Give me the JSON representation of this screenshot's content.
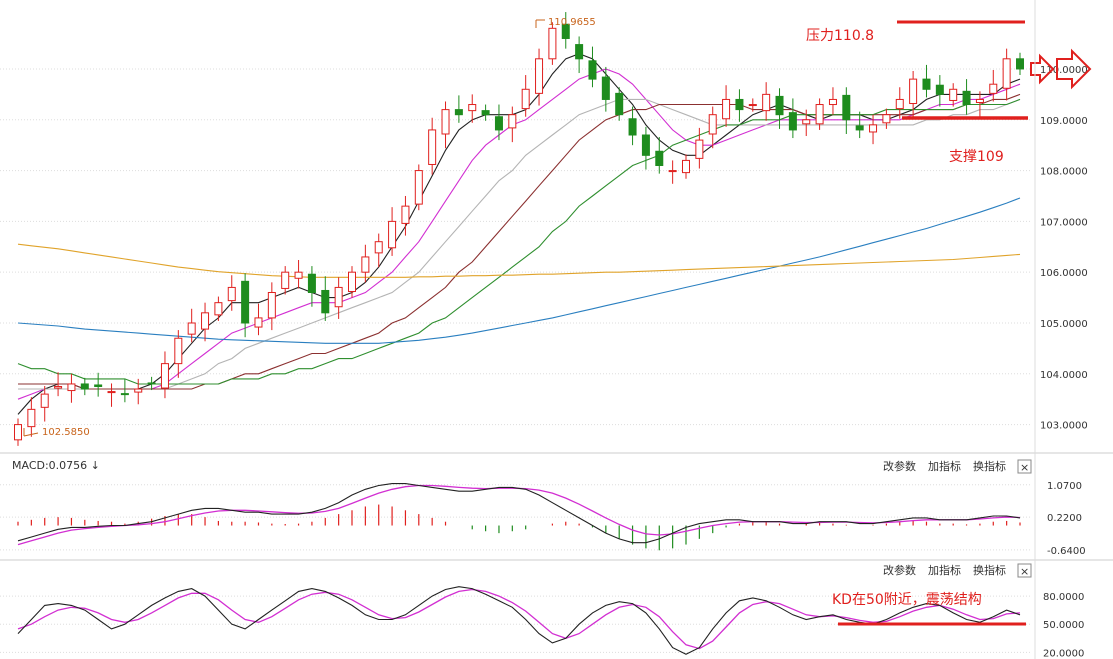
{
  "chart_data": [
    {
      "type": "candlestick",
      "panel": "price",
      "ylim": [
        102.5,
        111.2
      ],
      "y_ticks": [
        "103.0000",
        "104.0000",
        "105.0000",
        "106.0000",
        "107.0000",
        "108.0000",
        "109.0000",
        "110.0000"
      ],
      "high_marker": "110.9655",
      "low_marker": "102.5850",
      "close_path": [
        103.0,
        103.3,
        103.6,
        103.75,
        103.8,
        103.7,
        103.75,
        103.65,
        103.6,
        103.7,
        103.8,
        104.2,
        104.7,
        105.0,
        105.2,
        105.4,
        105.7,
        105.0,
        105.1,
        105.6,
        106.0,
        106.0,
        105.6,
        105.2,
        105.7,
        106.0,
        106.3,
        106.6,
        107.0,
        107.3,
        108.0,
        108.8,
        109.2,
        109.1,
        109.3,
        109.1,
        108.8,
        109.1,
        109.6,
        110.2,
        110.8,
        110.6,
        110.2,
        109.8,
        109.4,
        109.1,
        108.7,
        108.3,
        108.1,
        108.0,
        108.2,
        108.6,
        109.1,
        109.4,
        109.2,
        109.3,
        109.5,
        109.1,
        108.8,
        109.0,
        109.3,
        109.4,
        109.0,
        108.8,
        108.9,
        109.1,
        109.4,
        109.8,
        109.6,
        109.5,
        109.6,
        109.3,
        109.4,
        109.7,
        110.2,
        110.0
      ],
      "moving_averages": [
        {
          "color": "#222222",
          "values": [
            103.2,
            103.5,
            103.7,
            103.8,
            103.8,
            103.7,
            103.7,
            103.7,
            103.7,
            103.7,
            103.8,
            104.0,
            104.3,
            104.6,
            104.9,
            105.1,
            105.4,
            105.4,
            105.4,
            105.5,
            105.6,
            105.7,
            105.6,
            105.5,
            105.5,
            105.6,
            105.8,
            106.1,
            106.5,
            106.9,
            107.4,
            107.9,
            108.4,
            108.8,
            109.0,
            109.1,
            109.1,
            109.1,
            109.2,
            109.5,
            109.9,
            110.2,
            110.3,
            110.2,
            109.9,
            109.6,
            109.3,
            108.9,
            108.6,
            108.4,
            108.3,
            108.3,
            108.5,
            108.7,
            108.9,
            109.1,
            109.2,
            109.3,
            109.2,
            109.1,
            109.0,
            109.1,
            109.1,
            109.1,
            109.0,
            109.0,
            109.1,
            109.2,
            109.4,
            109.5,
            109.5,
            109.5,
            109.5,
            109.5,
            109.7,
            109.8
          ]
        },
        {
          "color": "#d22fd2",
          "values": [
            103.5,
            103.6,
            103.7,
            103.7,
            103.7,
            103.7,
            103.7,
            103.7,
            103.7,
            103.7,
            103.7,
            103.8,
            104.0,
            104.2,
            104.4,
            104.6,
            104.8,
            104.9,
            105.0,
            105.1,
            105.2,
            105.3,
            105.4,
            105.4,
            105.4,
            105.5,
            105.6,
            105.8,
            106.0,
            106.3,
            106.6,
            107.0,
            107.4,
            107.8,
            108.2,
            108.5,
            108.7,
            108.9,
            109.0,
            109.2,
            109.4,
            109.6,
            109.8,
            109.9,
            110.0,
            109.9,
            109.7,
            109.4,
            109.1,
            108.8,
            108.6,
            108.5,
            108.5,
            108.6,
            108.7,
            108.8,
            108.9,
            109.0,
            109.0,
            109.0,
            109.0,
            109.0,
            109.0,
            109.0,
            109.0,
            109.0,
            109.0,
            109.1,
            109.2,
            109.3,
            109.3,
            109.4,
            109.4,
            109.5,
            109.6,
            109.7
          ]
        },
        {
          "color": "#b4b4b4",
          "values": [
            103.7,
            103.7,
            103.7,
            103.7,
            103.7,
            103.7,
            103.7,
            103.7,
            103.7,
            103.7,
            103.7,
            103.7,
            103.8,
            103.9,
            104.0,
            104.2,
            104.3,
            104.5,
            104.6,
            104.7,
            104.8,
            104.9,
            105.0,
            105.1,
            105.2,
            105.3,
            105.4,
            105.5,
            105.6,
            105.8,
            106.0,
            106.3,
            106.6,
            106.9,
            107.2,
            107.5,
            107.8,
            108.0,
            108.3,
            108.5,
            108.7,
            108.9,
            109.1,
            109.2,
            109.3,
            109.4,
            109.4,
            109.4,
            109.3,
            109.2,
            109.1,
            109.0,
            108.9,
            108.9,
            108.9,
            108.9,
            108.9,
            108.9,
            108.9,
            108.9,
            108.9,
            108.9,
            108.9,
            108.9,
            108.9,
            108.9,
            108.9,
            108.9,
            109.0,
            109.0,
            109.1,
            109.1,
            109.2,
            109.2,
            109.3,
            109.4
          ]
        },
        {
          "color": "#8b3030",
          "values": [
            103.8,
            103.8,
            103.8,
            103.8,
            103.8,
            103.7,
            103.7,
            103.7,
            103.7,
            103.7,
            103.7,
            103.7,
            103.7,
            103.7,
            103.8,
            103.8,
            103.9,
            104.0,
            104.0,
            104.1,
            104.2,
            104.3,
            104.4,
            104.4,
            104.5,
            104.6,
            104.7,
            104.8,
            105.0,
            105.1,
            105.3,
            105.5,
            105.7,
            106.0,
            106.2,
            106.5,
            106.8,
            107.1,
            107.4,
            107.7,
            108.0,
            108.3,
            108.6,
            108.8,
            109.0,
            109.1,
            109.2,
            109.2,
            109.3,
            109.3,
            109.3,
            109.3,
            109.3,
            109.3,
            109.3,
            109.2,
            109.2,
            109.2,
            109.2,
            109.1,
            109.1,
            109.1,
            109.1,
            109.1,
            109.1,
            109.1,
            109.1,
            109.1,
            109.2,
            109.2,
            109.2,
            109.3,
            109.3,
            109.4,
            109.4,
            109.5
          ]
        },
        {
          "color": "#2f8f2f",
          "values": [
            104.2,
            104.1,
            104.1,
            104.0,
            104.0,
            103.9,
            103.9,
            103.9,
            103.9,
            103.8,
            103.8,
            103.8,
            103.8,
            103.8,
            103.8,
            103.8,
            103.9,
            103.9,
            103.9,
            104.0,
            104.0,
            104.1,
            104.1,
            104.2,
            104.3,
            104.3,
            104.4,
            104.5,
            104.6,
            104.7,
            104.8,
            105.0,
            105.1,
            105.3,
            105.5,
            105.7,
            105.9,
            106.1,
            106.3,
            106.5,
            106.8,
            107.0,
            107.3,
            107.5,
            107.7,
            107.9,
            108.1,
            108.2,
            108.3,
            108.5,
            108.6,
            108.7,
            108.8,
            108.9,
            108.9,
            109.0,
            109.0,
            109.0,
            109.1,
            109.1,
            109.1,
            109.1,
            109.1,
            109.1,
            109.1,
            109.2,
            109.2,
            109.2,
            109.2,
            109.2,
            109.2,
            109.3,
            109.3,
            109.3,
            109.3,
            109.4
          ]
        },
        {
          "color": "#2a7fc0",
          "values": [
            105.0,
            104.98,
            104.96,
            104.94,
            104.91,
            104.88,
            104.86,
            104.84,
            104.82,
            104.8,
            104.78,
            104.76,
            104.74,
            104.72,
            104.7,
            104.68,
            104.67,
            104.66,
            104.65,
            104.64,
            104.63,
            104.62,
            104.61,
            104.6,
            104.6,
            104.6,
            104.6,
            104.6,
            104.62,
            104.64,
            104.66,
            104.69,
            104.72,
            104.76,
            104.8,
            104.85,
            104.9,
            104.95,
            105.0,
            105.05,
            105.1,
            105.16,
            105.22,
            105.28,
            105.34,
            105.4,
            105.46,
            105.52,
            105.58,
            105.64,
            105.7,
            105.76,
            105.82,
            105.88,
            105.94,
            106.0,
            106.06,
            106.12,
            106.18,
            106.24,
            106.3,
            106.37,
            106.44,
            106.51,
            106.58,
            106.65,
            106.72,
            106.79,
            106.86,
            106.94,
            107.02,
            107.1,
            107.18,
            107.27,
            107.36,
            107.46
          ]
        },
        {
          "color": "#e0a32a",
          "values": [
            106.55,
            106.52,
            106.49,
            106.46,
            106.42,
            106.38,
            106.34,
            106.3,
            106.26,
            106.22,
            106.18,
            106.14,
            106.1,
            106.07,
            106.04,
            106.01,
            105.99,
            105.97,
            105.95,
            105.93,
            105.92,
            105.91,
            105.9,
            105.9,
            105.9,
            105.9,
            105.9,
            105.9,
            105.9,
            105.9,
            105.91,
            105.91,
            105.92,
            105.92,
            105.93,
            105.93,
            105.94,
            105.94,
            105.95,
            105.96,
            105.96,
            105.97,
            105.98,
            105.99,
            106.0,
            106.0,
            106.01,
            106.02,
            106.03,
            106.04,
            106.05,
            106.06,
            106.07,
            106.08,
            106.09,
            106.1,
            106.11,
            106.12,
            106.13,
            106.14,
            106.15,
            106.16,
            106.17,
            106.18,
            106.19,
            106.2,
            106.21,
            106.22,
            106.23,
            106.24,
            106.25,
            106.27,
            106.29,
            106.31,
            106.33,
            106.35
          ]
        }
      ]
    },
    {
      "type": "line",
      "panel": "macd",
      "label": "MACD:0.0756 ↓",
      "y_ticks": [
        "1.0700",
        "0.2200",
        "-0.6400"
      ],
      "ylim": [
        -0.8,
        1.3
      ],
      "hist": [
        0.1,
        0.15,
        0.2,
        0.22,
        0.2,
        0.15,
        0.12,
        0.1,
        0.05,
        0.1,
        0.18,
        0.25,
        0.3,
        0.3,
        0.22,
        0.12,
        0.1,
        0.1,
        0.08,
        0.05,
        0.04,
        0.05,
        0.1,
        0.2,
        0.3,
        0.4,
        0.5,
        0.55,
        0.5,
        0.4,
        0.3,
        0.2,
        0.1,
        0.0,
        -0.1,
        -0.15,
        -0.2,
        -0.15,
        -0.1,
        0.0,
        0.05,
        0.1,
        0.05,
        -0.05,
        -0.2,
        -0.35,
        -0.5,
        -0.6,
        -0.65,
        -0.6,
        -0.5,
        -0.35,
        -0.2,
        -0.05,
        0.05,
        0.1,
        0.1,
        0.05,
        0.0,
        0.05,
        0.08,
        0.05,
        0.02,
        0.0,
        0.02,
        0.05,
        0.1,
        0.12,
        0.1,
        0.05,
        0.05,
        0.03,
        0.05,
        0.1,
        0.12,
        0.08
      ],
      "dif": [
        -0.4,
        -0.3,
        -0.2,
        -0.1,
        -0.05,
        -0.05,
        -0.02,
        0.0,
        0.0,
        0.05,
        0.1,
        0.2,
        0.3,
        0.4,
        0.45,
        0.45,
        0.4,
        0.35,
        0.35,
        0.3,
        0.3,
        0.3,
        0.35,
        0.45,
        0.6,
        0.8,
        0.95,
        1.05,
        1.1,
        1.1,
        1.05,
        1.0,
        0.95,
        0.9,
        0.9,
        0.95,
        1.0,
        1.0,
        0.95,
        0.8,
        0.6,
        0.4,
        0.2,
        0.0,
        -0.2,
        -0.35,
        -0.45,
        -0.45,
        -0.35,
        -0.2,
        -0.05,
        0.05,
        0.1,
        0.15,
        0.15,
        0.1,
        0.1,
        0.1,
        0.05,
        0.05,
        0.1,
        0.1,
        0.1,
        0.05,
        0.05,
        0.1,
        0.15,
        0.2,
        0.2,
        0.15,
        0.15,
        0.15,
        0.2,
        0.25,
        0.25,
        0.2
      ],
      "dea": [
        -0.5,
        -0.4,
        -0.3,
        -0.2,
        -0.12,
        -0.08,
        -0.05,
        -0.02,
        0.0,
        0.02,
        0.05,
        0.1,
        0.18,
        0.26,
        0.33,
        0.38,
        0.4,
        0.4,
        0.38,
        0.36,
        0.34,
        0.32,
        0.33,
        0.37,
        0.45,
        0.58,
        0.72,
        0.85,
        0.95,
        1.02,
        1.05,
        1.05,
        1.03,
        1.0,
        0.98,
        0.97,
        0.98,
        0.98,
        0.97,
        0.93,
        0.85,
        0.72,
        0.56,
        0.38,
        0.2,
        0.03,
        -0.12,
        -0.22,
        -0.25,
        -0.22,
        -0.15,
        -0.07,
        0.0,
        0.05,
        0.09,
        0.1,
        0.1,
        0.1,
        0.09,
        0.08,
        0.08,
        0.09,
        0.09,
        0.08,
        0.07,
        0.08,
        0.1,
        0.13,
        0.15,
        0.15,
        0.15,
        0.15,
        0.17,
        0.2,
        0.22,
        0.21
      ]
    },
    {
      "type": "line",
      "panel": "kd",
      "y_ticks": [
        "80.0000",
        "50.0000",
        "20.0000"
      ],
      "ylim": [
        15,
        95
      ],
      "k": [
        40,
        55,
        70,
        72,
        70,
        65,
        55,
        45,
        50,
        60,
        70,
        78,
        85,
        88,
        80,
        65,
        50,
        45,
        55,
        65,
        75,
        85,
        88,
        85,
        78,
        70,
        60,
        55,
        55,
        60,
        70,
        80,
        87,
        90,
        88,
        82,
        75,
        68,
        55,
        40,
        30,
        35,
        50,
        62,
        70,
        74,
        72,
        62,
        45,
        25,
        18,
        25,
        45,
        62,
        75,
        78,
        75,
        68,
        60,
        55,
        58,
        60,
        55,
        52,
        50,
        55,
        62,
        68,
        72,
        70,
        62,
        55,
        52,
        58,
        65,
        60
      ],
      "d": [
        45,
        50,
        58,
        65,
        68,
        67,
        62,
        55,
        52,
        55,
        62,
        70,
        78,
        83,
        83,
        76,
        65,
        55,
        52,
        58,
        67,
        76,
        82,
        84,
        82,
        76,
        68,
        60,
        56,
        57,
        63,
        71,
        79,
        85,
        87,
        85,
        80,
        73,
        64,
        52,
        40,
        35,
        40,
        50,
        60,
        68,
        71,
        68,
        58,
        42,
        28,
        24,
        32,
        47,
        62,
        71,
        74,
        72,
        66,
        60,
        58,
        59,
        57,
        54,
        52,
        53,
        58,
        64,
        68,
        70,
        66,
        60,
        55,
        56,
        61,
        62
      ]
    }
  ],
  "panel_buttons": [
    "改参数",
    "加指标",
    "换指标"
  ],
  "close_icon": "×",
  "annotations": {
    "resistance": "压力110.8",
    "support": "支撑109",
    "kd_note": "KD在50附近，震荡结构"
  },
  "colors": {
    "up": "#e0201e",
    "down": "#1e8c1e",
    "annotation": "#e0201e",
    "dif": "#222222",
    "dea": "#d22fd2",
    "grid": "#dddddd"
  }
}
